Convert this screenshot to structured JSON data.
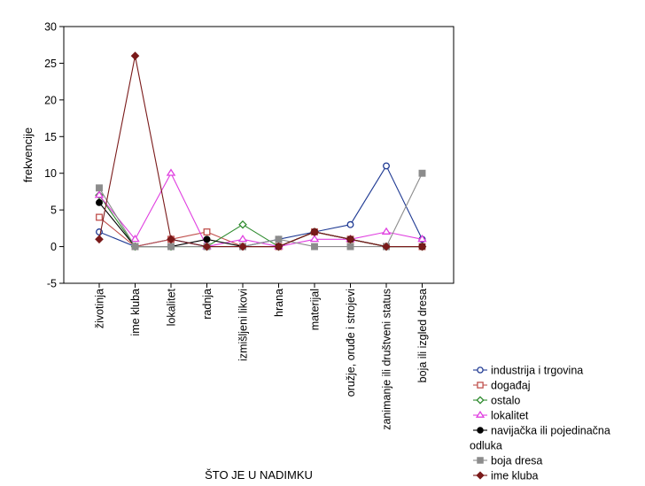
{
  "chart_data": {
    "type": "line",
    "title": "",
    "xlabel": "ŠTO JE U NADIMKU",
    "ylabel": "frekvencije",
    "ylim": [
      -5,
      30
    ],
    "yticks": [
      -5,
      0,
      5,
      10,
      15,
      20,
      25,
      30
    ],
    "grid": false,
    "legend_position": "bottom-right",
    "categories": [
      "životinja",
      "ime kluba",
      "lokalitet",
      "radnja",
      "izmišljeni likovi",
      "hrana",
      "materijal",
      "oružje, oruđe i strojevi",
      "zanimanje ili društveni status",
      "boja ili izgled dresa"
    ],
    "series": [
      {
        "name": "industrija i trgovina",
        "color": "#1f3a93",
        "marker": "circle-open",
        "values": [
          2,
          0,
          1,
          0,
          0,
          1,
          2,
          3,
          11,
          1
        ]
      },
      {
        "name": "događaj",
        "color": "#c0504d",
        "marker": "square-open",
        "values": [
          4,
          0,
          1,
          2,
          0,
          0,
          2,
          1,
          0,
          0
        ]
      },
      {
        "name": "ostalo",
        "color": "#2e8b2e",
        "marker": "diamond-open",
        "values": [
          7,
          0,
          0,
          0,
          3,
          0,
          2,
          1,
          0,
          0
        ]
      },
      {
        "name": "lokalitet",
        "color": "#e040e0",
        "marker": "triangle-open",
        "values": [
          7,
          1,
          10,
          0,
          1,
          0,
          1,
          1,
          2,
          1
        ]
      },
      {
        "name": "navijačka ili pojedinačna odluka",
        "color": "#000000",
        "marker": "circle-filled",
        "values": [
          6,
          0,
          0,
          1,
          0,
          0,
          2,
          1,
          0,
          0
        ]
      },
      {
        "name": "boja dresa",
        "color": "#8c8c8c",
        "marker": "square-filled",
        "values": [
          8,
          0,
          0,
          0,
          0,
          1,
          0,
          0,
          0,
          10
        ]
      },
      {
        "name": "ime kluba",
        "color": "#7a1a1a",
        "marker": "diamond-filled",
        "values": [
          1,
          26,
          1,
          0,
          0,
          0,
          2,
          1,
          0,
          0
        ]
      }
    ]
  }
}
